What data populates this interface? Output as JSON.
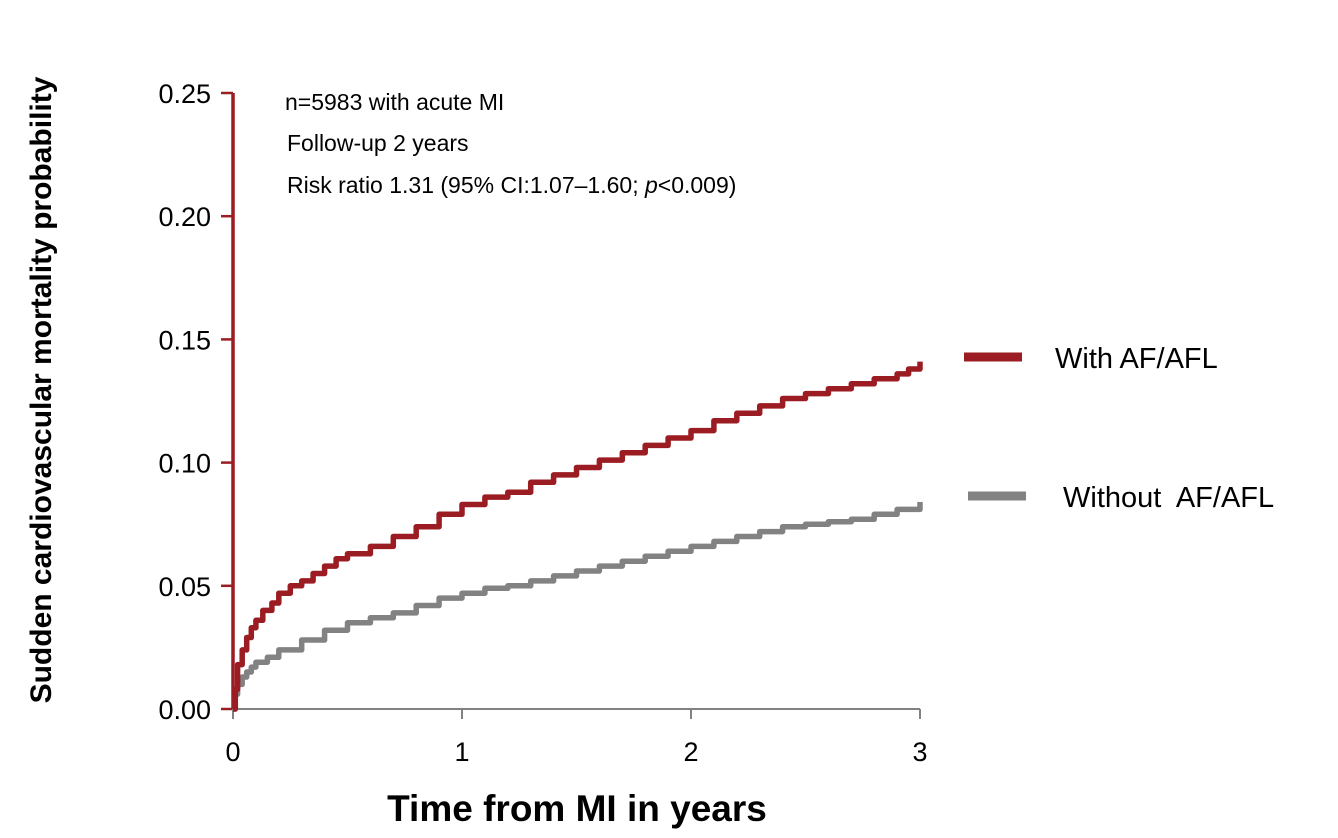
{
  "chart_data": {
    "type": "line",
    "xlabel": "Time from MI in years",
    "ylabel": "Sudden cardiovascular mortality probability",
    "xlim": [
      0,
      3
    ],
    "ylim": [
      0,
      0.25
    ],
    "x_ticks": [
      "0",
      "1",
      "2",
      "3"
    ],
    "y_ticks": [
      "0.00",
      "0.05",
      "0.10",
      "0.15",
      "0.20",
      "0.25"
    ],
    "grid": false,
    "legend_position": "right",
    "annotations": {
      "line1": "n=5983 with acute MI",
      "line2": "Follow-up 2 years",
      "line3_prefix": "Risk ratio 1.31 (95% CI:1.07–1.60; ",
      "line3_p": "p",
      "line3_suffix": "<0.009)"
    },
    "series": [
      {
        "name": "With AF/AFL",
        "color": "#9b1c22",
        "x": [
          0,
          0.01,
          0.02,
          0.04,
          0.06,
          0.08,
          0.1,
          0.13,
          0.17,
          0.2,
          0.25,
          0.3,
          0.35,
          0.4,
          0.45,
          0.5,
          0.6,
          0.7,
          0.8,
          0.9,
          1.0,
          1.1,
          1.2,
          1.3,
          1.4,
          1.5,
          1.6,
          1.7,
          1.8,
          1.9,
          2.0,
          2.1,
          2.2,
          2.3,
          2.4,
          2.5,
          2.6,
          2.7,
          2.8,
          2.9,
          2.95,
          3.0
        ],
        "y": [
          0.0,
          0.008,
          0.018,
          0.024,
          0.029,
          0.033,
          0.036,
          0.04,
          0.043,
          0.047,
          0.05,
          0.052,
          0.055,
          0.058,
          0.061,
          0.063,
          0.066,
          0.07,
          0.074,
          0.079,
          0.083,
          0.086,
          0.088,
          0.092,
          0.095,
          0.098,
          0.101,
          0.104,
          0.107,
          0.11,
          0.113,
          0.117,
          0.12,
          0.123,
          0.126,
          0.128,
          0.13,
          0.132,
          0.134,
          0.136,
          0.138,
          0.141
        ]
      },
      {
        "name": "Without  AF/AFL",
        "color": "#828282",
        "x": [
          0,
          0.01,
          0.02,
          0.04,
          0.06,
          0.08,
          0.1,
          0.15,
          0.2,
          0.3,
          0.4,
          0.5,
          0.6,
          0.7,
          0.8,
          0.9,
          1.0,
          1.1,
          1.2,
          1.3,
          1.4,
          1.5,
          1.6,
          1.7,
          1.8,
          1.9,
          2.0,
          2.1,
          2.2,
          2.3,
          2.4,
          2.5,
          2.6,
          2.7,
          2.8,
          2.9,
          3.0
        ],
        "y": [
          0.0,
          0.006,
          0.01,
          0.013,
          0.015,
          0.017,
          0.019,
          0.021,
          0.024,
          0.028,
          0.032,
          0.035,
          0.037,
          0.039,
          0.042,
          0.045,
          0.047,
          0.049,
          0.05,
          0.052,
          0.054,
          0.056,
          0.058,
          0.06,
          0.062,
          0.064,
          0.066,
          0.068,
          0.07,
          0.072,
          0.074,
          0.075,
          0.076,
          0.077,
          0.079,
          0.081,
          0.084
        ]
      }
    ]
  },
  "colors": {
    "axis": "#9b1c22",
    "with_af": "#9b1c22",
    "without_af": "#828282"
  }
}
